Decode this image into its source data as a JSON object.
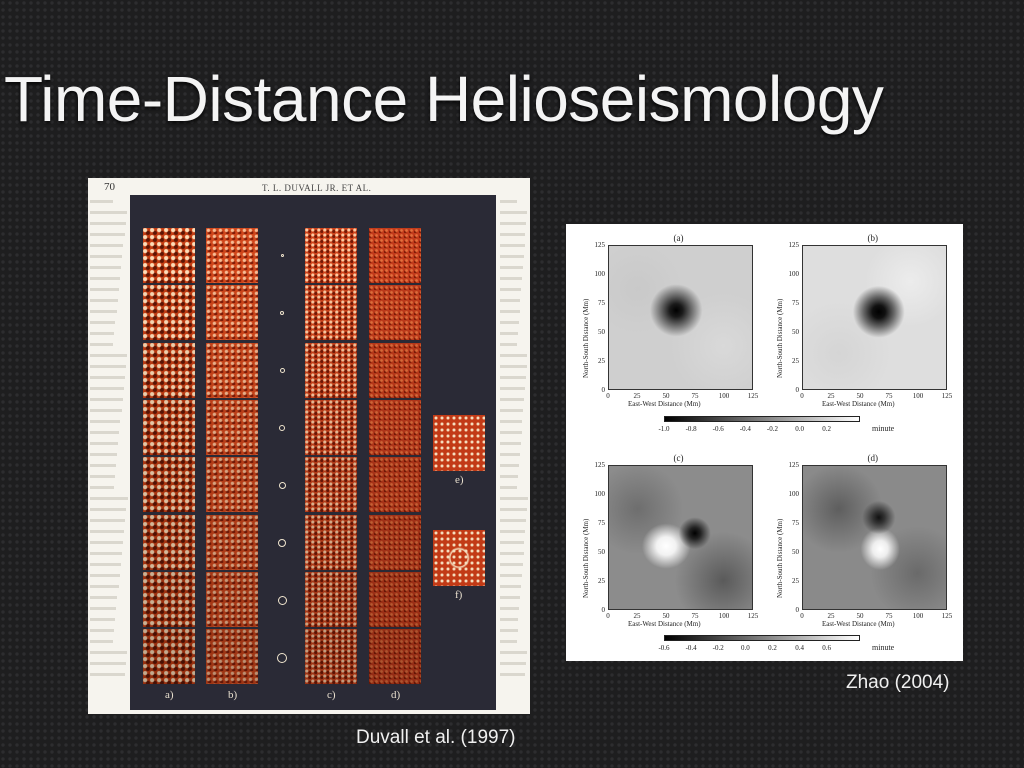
{
  "slide": {
    "title": "Time-Distance Helioseismology"
  },
  "duvall_figure": {
    "caption": "Duvall et al. (1997)",
    "page_number": "70",
    "running_head": "T. L. DUVALL JR. ET AL.",
    "column_labels": [
      "a)",
      "b)",
      "c)",
      "d)"
    ],
    "side_labels": [
      "e)",
      "f)"
    ]
  },
  "zhao_figure": {
    "caption": "Zhao (2004)",
    "panels": [
      {
        "letter": "(a)"
      },
      {
        "letter": "(b)"
      },
      {
        "letter": "(c)"
      },
      {
        "letter": "(d)"
      }
    ],
    "y_label": "North-South Distance (Mm)",
    "x_label": "East-West Distance (Mm)",
    "y_ticks": [
      "125",
      "100",
      "75",
      "50",
      "25",
      "0"
    ],
    "x_ticks": [
      "0",
      "25",
      "50",
      "75",
      "100",
      "125"
    ],
    "colorbar_top": {
      "ticks": [
        "-1.0",
        "-0.8",
        "-0.6",
        "-0.4",
        "-0.2",
        "0.0",
        "0.2"
      ],
      "unit": "minute"
    },
    "colorbar_bottom": {
      "ticks": [
        "-0.6",
        "-0.4",
        "-0.2",
        "0.0",
        "0.2",
        "0.4",
        "0.6"
      ],
      "unit": "minute"
    }
  }
}
